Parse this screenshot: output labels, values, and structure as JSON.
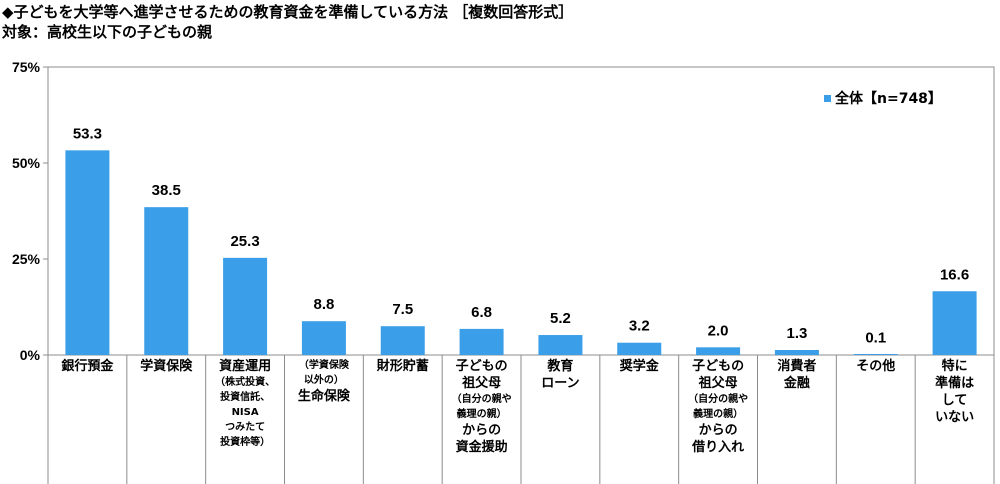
{
  "title": "◆子どもを大学等へ進学させるための教育資金を準備している方法 ［複数回答形式］",
  "subtitle": "対象：高校生以下の子どもの親",
  "chart_data": {
    "type": "bar",
    "categories": [
      [
        "銀行預金"
      ],
      [
        "学資保険"
      ],
      [
        "資産運用",
        "（株式投資、",
        "投資信託、",
        "NISA",
        "つみたて",
        "投資枠等）"
      ],
      [
        "（学資保険",
        "以外の）",
        "生命保険"
      ],
      [
        "財形貯蓄"
      ],
      [
        "子どもの",
        "祖父母",
        "（自分の親や",
        "義理の親）",
        "からの",
        "資金援助"
      ],
      [
        "教育",
        "ローン"
      ],
      [
        "奨学金"
      ],
      [
        "子どもの",
        "祖父母",
        "（自分の親や",
        "義理の親）",
        "からの",
        "借り入れ"
      ],
      [
        "消費者",
        "金融"
      ],
      [
        "その他"
      ],
      [
        "特に",
        "準備は",
        "して",
        "いない"
      ]
    ],
    "small_lines": [
      [],
      [],
      [
        1,
        2,
        3,
        4,
        5
      ],
      [
        0,
        1
      ],
      [],
      [
        2,
        3
      ],
      [],
      [],
      [
        2,
        3
      ],
      [],
      [],
      []
    ],
    "series": [
      {
        "name": "全体【n=748】",
        "values": [
          53.3,
          38.5,
          25.3,
          8.8,
          7.5,
          6.8,
          5.2,
          3.2,
          2.0,
          1.3,
          0.1,
          16.6
        ]
      }
    ],
    "value_labels": [
      "53.3",
      "38.5",
      "25.3",
      "8.8",
      "7.5",
      "6.8",
      "5.2",
      "3.2",
      "2.0",
      "1.3",
      "0.1",
      "16.6"
    ],
    "yticks": [
      "0%",
      "25%",
      "50%",
      "75%"
    ],
    "ytick_values": [
      0,
      25,
      50,
      75
    ],
    "ylim": [
      0,
      75
    ],
    "legend_position": "top-right",
    "bar_color": "#3b9ee8",
    "frame_color": "#8c8c8c"
  }
}
